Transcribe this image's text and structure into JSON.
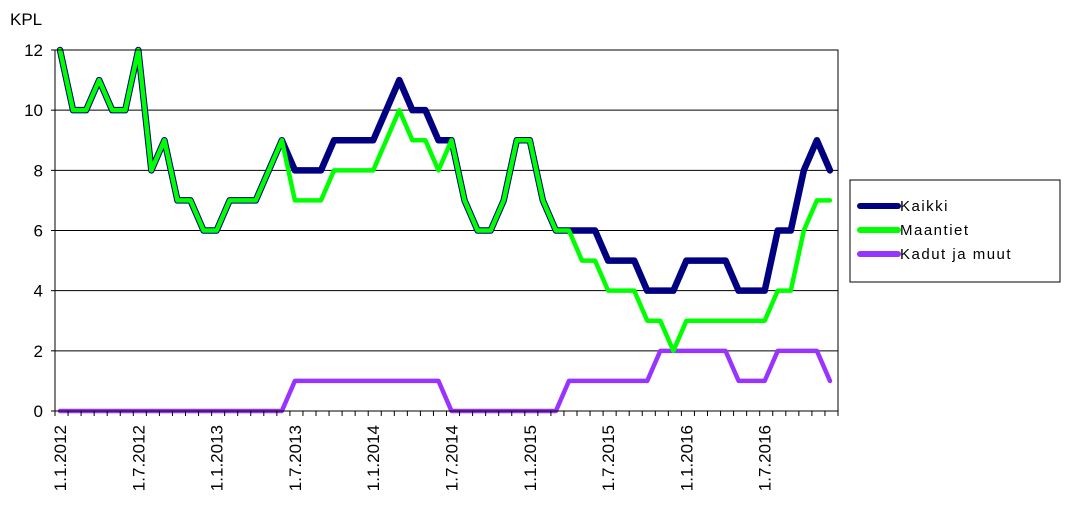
{
  "chart_data": {
    "type": "line",
    "ylabel": "KPL",
    "ylim": [
      0,
      12
    ],
    "yticks": [
      0,
      2,
      4,
      6,
      8,
      10,
      12
    ],
    "xtick_labels": [
      "1.1.2012",
      "1.7.2012",
      "1.1.2013",
      "1.7.2013",
      "1.1.2014",
      "1.7.2014",
      "1.1.2015",
      "1.7.2015",
      "1.1.2016",
      "1.7.2016"
    ],
    "x_start": "1.1.2012",
    "x_period": "month",
    "grid": "horizontal",
    "legend_position": "right",
    "series": [
      {
        "name": "Kaikki",
        "color": "#000080",
        "values": [
          12,
          10,
          10,
          11,
          10,
          10,
          12,
          8,
          9,
          7,
          7,
          6,
          6,
          7,
          7,
          7,
          8,
          9,
          8,
          8,
          8,
          9,
          9,
          9,
          9,
          10,
          11,
          10,
          10,
          9,
          9,
          7,
          6,
          6,
          7,
          9,
          9,
          7,
          6,
          6,
          6,
          6,
          5,
          5,
          5,
          4,
          4,
          4,
          5,
          5,
          5,
          5,
          4,
          4,
          4,
          6,
          6,
          8,
          9,
          8
        ]
      },
      {
        "name": "Maantiet",
        "color": "#00ff00",
        "values": [
          12,
          10,
          10,
          11,
          10,
          10,
          12,
          8,
          9,
          7,
          7,
          6,
          6,
          7,
          7,
          7,
          8,
          9,
          7,
          7,
          7,
          8,
          8,
          8,
          8,
          9,
          10,
          9,
          9,
          8,
          9,
          7,
          6,
          6,
          7,
          9,
          9,
          7,
          6,
          6,
          5,
          5,
          4,
          4,
          4,
          3,
          3,
          2,
          3,
          3,
          3,
          3,
          3,
          3,
          3,
          4,
          4,
          6,
          7,
          7
        ]
      },
      {
        "name": "Kadut ja muut",
        "color": "#9933ff",
        "values": [
          0,
          0,
          0,
          0,
          0,
          0,
          0,
          0,
          0,
          0,
          0,
          0,
          0,
          0,
          0,
          0,
          0,
          0,
          1,
          1,
          1,
          1,
          1,
          1,
          1,
          1,
          1,
          1,
          1,
          1,
          0,
          0,
          0,
          0,
          0,
          0,
          0,
          0,
          0,
          1,
          1,
          1,
          1,
          1,
          1,
          1,
          2,
          2,
          2,
          2,
          2,
          2,
          1,
          1,
          1,
          2,
          2,
          2,
          2,
          1
        ]
      }
    ]
  }
}
